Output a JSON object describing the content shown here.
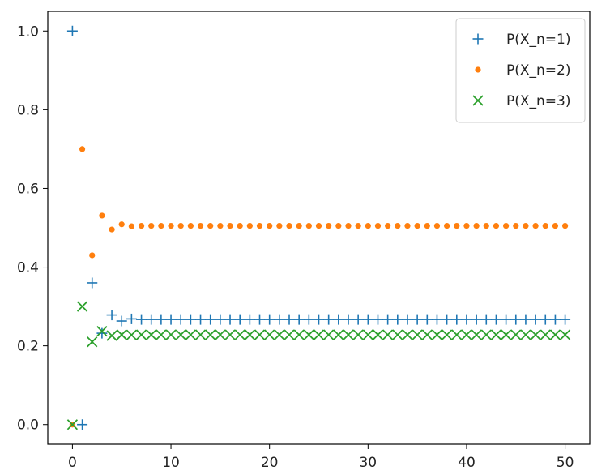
{
  "chart_data": {
    "type": "scatter",
    "title": "",
    "xlabel": "",
    "ylabel": "",
    "xlim": [
      -2.5,
      52.5
    ],
    "ylim": [
      -0.05,
      1.05
    ],
    "xticks": [
      0,
      10,
      20,
      30,
      40,
      50
    ],
    "yticks": [
      0.0,
      0.2,
      0.4,
      0.6,
      0.8,
      1.0
    ],
    "xtick_labels": [
      "0",
      "10",
      "20",
      "30",
      "40",
      "50"
    ],
    "ytick_labels": [
      "0.0",
      "0.2",
      "0.4",
      "0.6",
      "0.8",
      "1.0"
    ],
    "grid": false,
    "legend_position": "top-right",
    "series": [
      {
        "name": "P(X_n=1)",
        "marker": "plus",
        "color": "#1f77b4",
        "first_values": [
          1.0,
          0.0,
          0.36,
          0.232,
          0.2784,
          0.26304,
          0.268416
        ],
        "steady_value": 0.267
      },
      {
        "name": "P(X_n=2)",
        "marker": "dot",
        "color": "#ff7f0e",
        "first_values": [
          0.0,
          0.7,
          0.43,
          0.531,
          0.4957,
          0.50874,
          0.503947
        ],
        "steady_value": 0.505
      },
      {
        "name": "P(X_n=3)",
        "marker": "x",
        "color": "#2ca02c",
        "first_values": [
          0.0,
          0.3,
          0.21,
          0.237,
          0.2259,
          0.22822,
          0.227637
        ],
        "steady_value": 0.228
      }
    ],
    "x_start": 0,
    "x_end": 50
  }
}
